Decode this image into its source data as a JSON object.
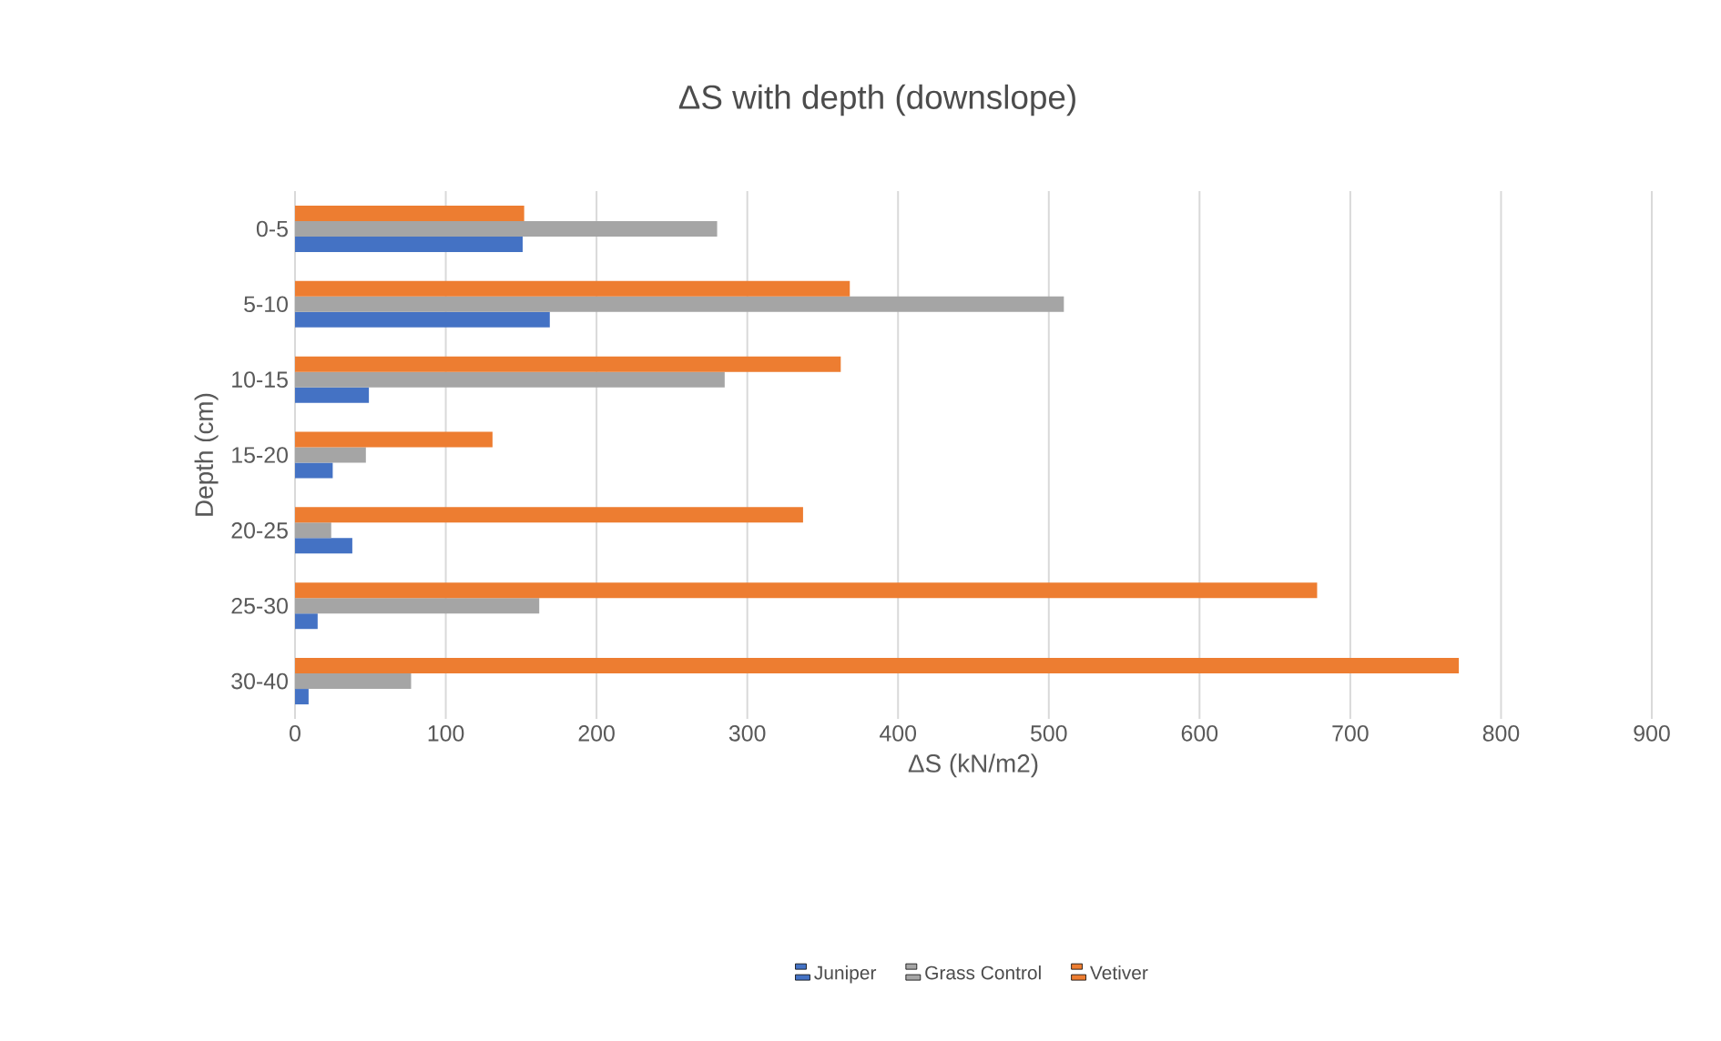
{
  "chart_data": {
    "type": "bar",
    "orientation": "horizontal",
    "title": "ΔS with depth (downslope)",
    "xlabel": "ΔS (kN/m2)",
    "ylabel": "Depth (cm)",
    "categories": [
      "0-5",
      "5-10",
      "10-15",
      "15-20",
      "20-25",
      "25-30",
      "30-40"
    ],
    "series": [
      {
        "name": "Juniper",
        "color": "#4472c4",
        "values": [
          151,
          169,
          49,
          25,
          38,
          15,
          9
        ]
      },
      {
        "name": "Grass Control",
        "color": "#a5a5a5",
        "values": [
          280,
          510,
          285,
          47,
          24,
          162,
          77
        ]
      },
      {
        "name": "Vetiver",
        "color": "#ed7d31",
        "values": [
          152,
          368,
          362,
          131,
          337,
          678,
          772
        ]
      }
    ],
    "xlim": [
      0,
      900
    ],
    "xticks": [
      0,
      100,
      200,
      300,
      400,
      500,
      600,
      700,
      800,
      900
    ],
    "grid": "x",
    "legend": "bottom"
  }
}
